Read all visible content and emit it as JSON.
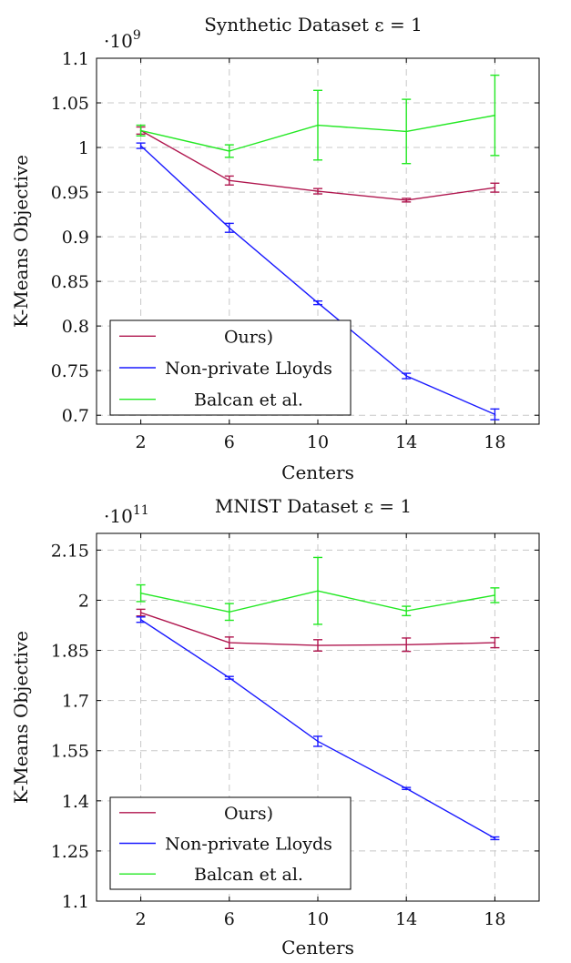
{
  "chart_data": [
    {
      "type": "line",
      "title": "Synthetic Dataset ε = 1",
      "xlabel": "Centers",
      "ylabel": "K-Means Objective",
      "y_scale_label": "·10",
      "y_scale_exp": "9",
      "x": [
        2,
        6,
        10,
        14,
        18
      ],
      "xticks": [
        "2",
        "6",
        "10",
        "14",
        "18"
      ],
      "xlim": [
        0,
        20
      ],
      "ylim": [
        0.69,
        1.1
      ],
      "yticks": [
        0.7,
        0.75,
        0.8,
        0.85,
        0.9,
        0.95,
        1,
        1.05,
        1.1
      ],
      "ytick_labels": [
        "0.7",
        "0.75",
        "0.8",
        "0.85",
        "0.9",
        "0.95",
        "1",
        "1.05",
        "1.1"
      ],
      "grid": true,
      "legend_position": "lower-left",
      "series": [
        {
          "name": "Ours)",
          "color": "#b0174f",
          "values": [
            1.019,
            0.963,
            0.951,
            0.941,
            0.955
          ],
          "err": [
            0.004,
            0.005,
            0.003,
            0.002,
            0.005
          ]
        },
        {
          "name": "Non-private Lloyds",
          "color": "#1a1aff",
          "values": [
            1.002,
            0.91,
            0.826,
            0.744,
            0.701
          ],
          "err": [
            0.003,
            0.005,
            0.002,
            0.003,
            0.006
          ]
        },
        {
          "name": "Balcan et al.",
          "color": "#22e822",
          "values": [
            1.019,
            0.996,
            1.025,
            1.018,
            1.036
          ],
          "err": [
            0.006,
            0.007,
            0.039,
            0.036,
            0.045
          ]
        }
      ]
    },
    {
      "type": "line",
      "title": "MNIST Dataset ε = 1",
      "xlabel": "Centers",
      "ylabel": "K-Means Objective",
      "y_scale_label": "·10",
      "y_scale_exp": "11",
      "x": [
        2,
        6,
        10,
        14,
        18
      ],
      "xticks": [
        "2",
        "6",
        "10",
        "14",
        "18"
      ],
      "xlim": [
        0,
        20
      ],
      "ylim": [
        1.1,
        2.2
      ],
      "yticks": [
        1.1,
        1.25,
        1.4,
        1.55,
        1.7,
        1.85,
        2,
        2.15
      ],
      "ytick_labels": [
        "1.1",
        "1.25",
        "1.4",
        "1.55",
        "1.7",
        "1.85",
        "2",
        "2.15"
      ],
      "grid": true,
      "legend_position": "lower-left",
      "series": [
        {
          "name": "Ours)",
          "color": "#b0174f",
          "values": [
            1.963,
            1.873,
            1.865,
            1.867,
            1.873
          ],
          "err": [
            0.01,
            0.017,
            0.017,
            0.02,
            0.015
          ]
        },
        {
          "name": "Non-private Lloyds",
          "color": "#1a1aff",
          "values": [
            1.942,
            1.768,
            1.578,
            1.437,
            1.288
          ],
          "err": [
            0.008,
            0.004,
            0.015,
            0.003,
            0.004
          ]
        },
        {
          "name": "Balcan et al.",
          "color": "#22e822",
          "values": [
            2.021,
            1.965,
            2.028,
            1.968,
            2.015
          ],
          "err": [
            0.025,
            0.025,
            0.1,
            0.014,
            0.022
          ]
        }
      ]
    }
  ]
}
